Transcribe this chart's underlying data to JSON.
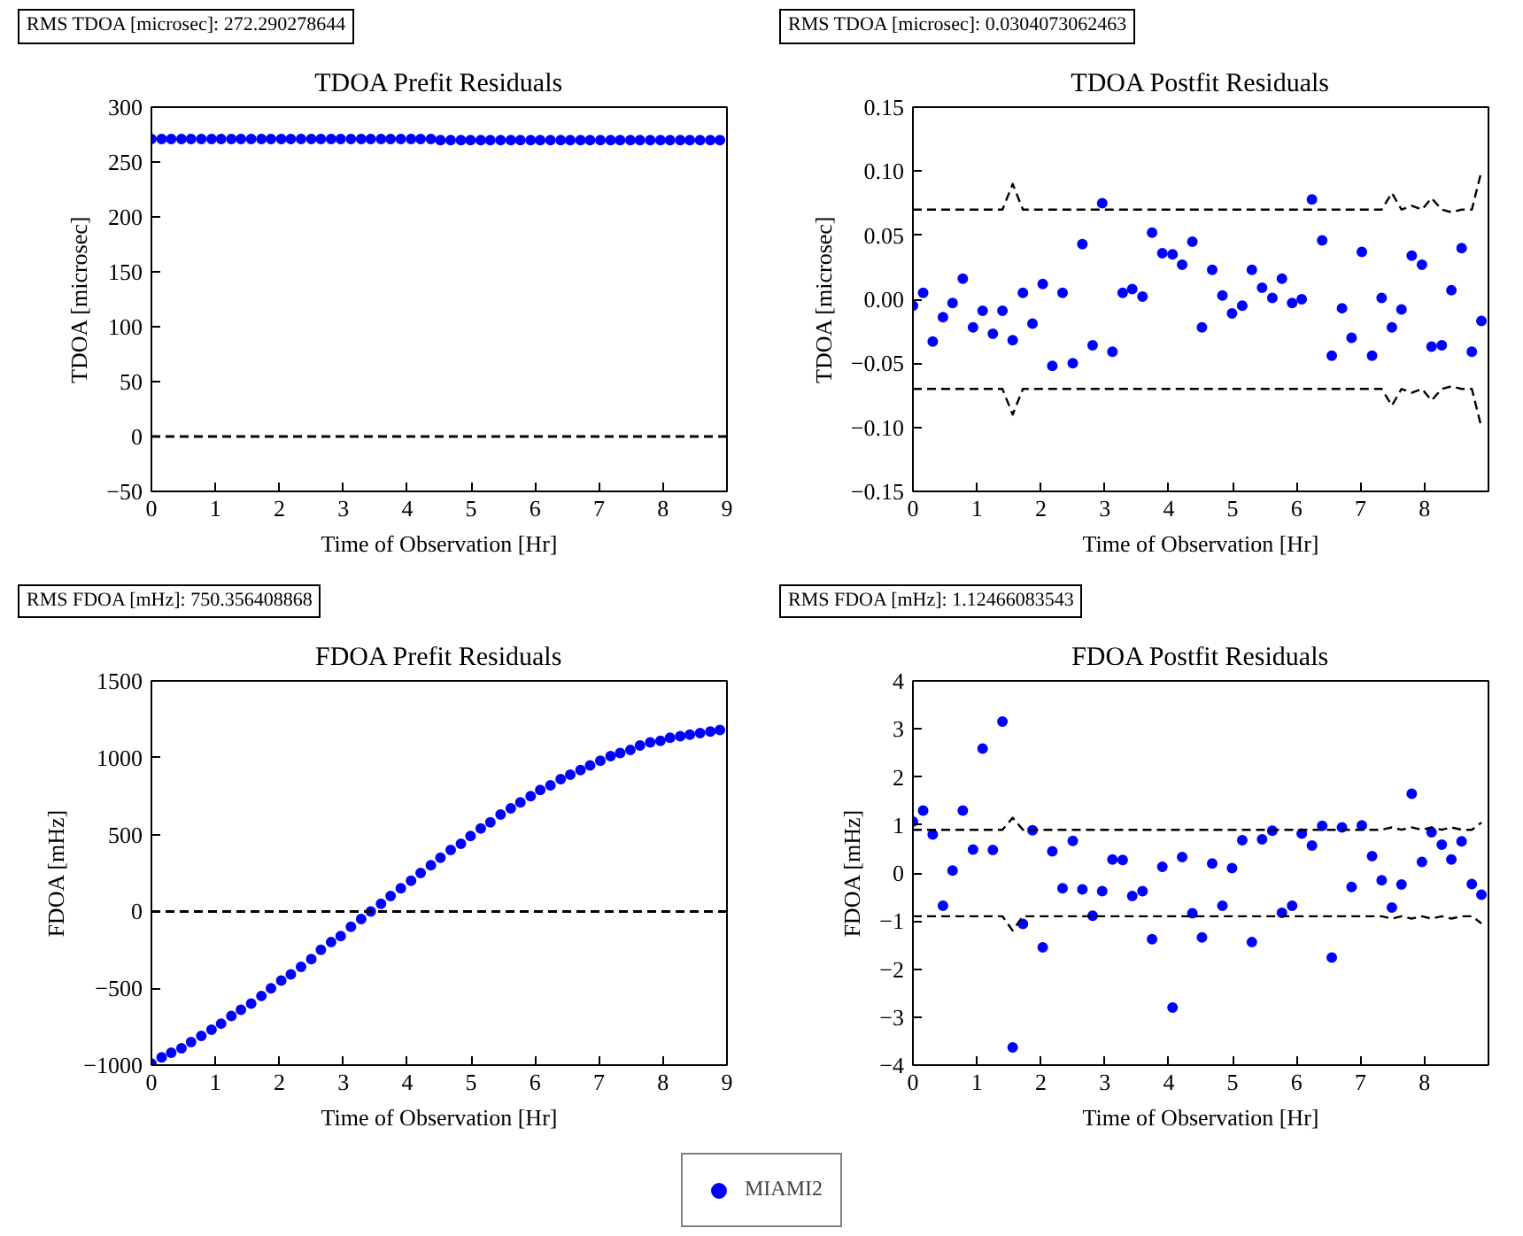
{
  "chart_data": [
    {
      "type": "scatter",
      "title": "TDOA Prefit Residuals",
      "xlabel": "Time of Observation [Hr]",
      "ylabel": "TDOA [microsec]",
      "annotations": [
        "RMS TDOA [microsec]: 272.290278644"
      ],
      "marker": "circle",
      "grid": false,
      "x": [
        0,
        0.16,
        0.31,
        0.47,
        0.62,
        0.78,
        0.94,
        1.09,
        1.25,
        1.4,
        1.56,
        1.72,
        1.87,
        2.03,
        2.18,
        2.34,
        2.5,
        2.65,
        2.81,
        2.96,
        3.12,
        3.28,
        3.43,
        3.59,
        3.74,
        3.9,
        4.06,
        4.21,
        4.37,
        4.52,
        4.68,
        4.84,
        4.99,
        5.15,
        5.3,
        5.46,
        5.62,
        5.77,
        5.93,
        6.08,
        6.24,
        6.4,
        6.55,
        6.71,
        6.86,
        7.02,
        7.18,
        7.33,
        7.49,
        7.64,
        7.8,
        7.96,
        8.11,
        8.27,
        8.42,
        8.58,
        8.74,
        8.89
      ],
      "series": [
        {
          "color": "#0000ff",
          "values": [
            271,
            271,
            271,
            271,
            271,
            271,
            271,
            271,
            271,
            271,
            271,
            271,
            271,
            271,
            271,
            271,
            271,
            271,
            271,
            271,
            271,
            271,
            271,
            271,
            271,
            271,
            271,
            271,
            271,
            270,
            270,
            270,
            270,
            270,
            270,
            270,
            270,
            270,
            270,
            270,
            270,
            270,
            270,
            270,
            270,
            270,
            270,
            270,
            270,
            270,
            270,
            270,
            270,
            270,
            270,
            270,
            270,
            270
          ]
        }
      ],
      "ref_lines": [
        {
          "axis": "y",
          "value": 0,
          "color": "#000000",
          "line_style": "dashed"
        }
      ],
      "xlim": [
        0,
        9
      ],
      "xticks": [
        0,
        1,
        2,
        3,
        4,
        5,
        6,
        7,
        8,
        9
      ],
      "ylim": [
        -50,
        300
      ],
      "yticks": [
        {
          "value": -50,
          "label": "−50"
        },
        0,
        50,
        100,
        150,
        200,
        250,
        300
      ]
    },
    {
      "type": "scatter",
      "title": "TDOA Postfit Residuals",
      "xlabel": "Time of Observation [Hr]",
      "ylabel": "TDOA [microsec]",
      "annotations": [
        "RMS TDOA [microsec]: 0.0304073062463"
      ],
      "marker": "circle",
      "grid": false,
      "x": [
        0,
        0.16,
        0.31,
        0.47,
        0.62,
        0.78,
        0.94,
        1.09,
        1.25,
        1.4,
        1.56,
        1.72,
        1.87,
        2.03,
        2.18,
        2.34,
        2.5,
        2.65,
        2.81,
        2.96,
        3.12,
        3.28,
        3.43,
        3.59,
        3.74,
        3.9,
        4.06,
        4.21,
        4.37,
        4.52,
        4.68,
        4.84,
        4.99,
        5.15,
        5.3,
        5.46,
        5.62,
        5.77,
        5.93,
        6.08,
        6.24,
        6.4,
        6.55,
        6.71,
        6.86,
        7.02,
        7.18,
        7.33,
        7.49,
        7.64,
        7.8,
        7.96,
        8.11,
        8.27,
        8.42,
        8.58,
        8.74,
        8.89
      ],
      "series": [
        {
          "color": "#0000ff",
          "values": [
            -0.005,
            0.005,
            -0.033,
            -0.014,
            -0.003,
            0.016,
            -0.022,
            -0.009,
            -0.027,
            -0.009,
            -0.032,
            0.005,
            -0.019,
            0.012,
            -0.052,
            0.005,
            -0.05,
            0.043,
            -0.036,
            0.075,
            -0.041,
            0.005,
            0.008,
            0.002,
            0.052,
            0.036,
            0.035,
            0.027,
            0.045,
            -0.022,
            0.023,
            0.003,
            -0.011,
            -0.005,
            0.023,
            0.009,
            0.001,
            0.016,
            -0.003,
            0,
            0.078,
            0.046,
            -0.044,
            -0.007,
            -0.03,
            0.037,
            -0.044,
            0.001,
            -0.022,
            -0.008,
            0.034,
            0.027,
            -0.037,
            -0.036,
            0.007,
            0.04,
            -0.041,
            -0.017
          ]
        },
        {
          "type": "line",
          "color": "#000000",
          "line_style": "dashed",
          "marker": "none",
          "values": [
            0.07,
            0.07,
            0.07,
            0.07,
            0.07,
            0.07,
            0.07,
            0.07,
            0.07,
            0.07,
            0.09,
            0.07,
            0.07,
            0.07,
            0.07,
            0.07,
            0.07,
            0.07,
            0.07,
            0.07,
            0.07,
            0.07,
            0.07,
            0.07,
            0.07,
            0.07,
            0.07,
            0.07,
            0.07,
            0.07,
            0.07,
            0.07,
            0.07,
            0.07,
            0.07,
            0.07,
            0.07,
            0.07,
            0.07,
            0.07,
            0.07,
            0.07,
            0.07,
            0.07,
            0.07,
            0.07,
            0.07,
            0.07,
            0.083,
            0.07,
            0.073,
            0.07,
            0.079,
            0.07,
            0.068,
            0.07,
            0.07,
            0.1
          ]
        },
        {
          "type": "line",
          "color": "#000000",
          "line_style": "dashed",
          "marker": "none",
          "values": [
            -0.07,
            -0.07,
            -0.07,
            -0.07,
            -0.07,
            -0.07,
            -0.07,
            -0.07,
            -0.07,
            -0.07,
            -0.09,
            -0.07,
            -0.07,
            -0.07,
            -0.07,
            -0.07,
            -0.07,
            -0.07,
            -0.07,
            -0.07,
            -0.07,
            -0.07,
            -0.07,
            -0.07,
            -0.07,
            -0.07,
            -0.07,
            -0.07,
            -0.07,
            -0.07,
            -0.07,
            -0.07,
            -0.07,
            -0.07,
            -0.07,
            -0.07,
            -0.07,
            -0.07,
            -0.07,
            -0.07,
            -0.07,
            -0.07,
            -0.07,
            -0.07,
            -0.07,
            -0.07,
            -0.07,
            -0.07,
            -0.083,
            -0.07,
            -0.073,
            -0.07,
            -0.079,
            -0.07,
            -0.068,
            -0.07,
            -0.07,
            -0.1
          ]
        }
      ],
      "xlim": [
        0,
        9
      ],
      "xticks": [
        0,
        1,
        2,
        3,
        4,
        5,
        6,
        7,
        8
      ],
      "ylim": [
        -0.15,
        0.15
      ],
      "yticks": [
        {
          "value": -0.15,
          "label": "−0.15"
        },
        {
          "value": -0.1,
          "label": "−0.10"
        },
        {
          "value": -0.05,
          "label": "−0.05"
        },
        {
          "value": 0,
          "label": "0.00"
        },
        {
          "value": 0.05,
          "label": "0.05"
        },
        {
          "value": 0.1,
          "label": "0.10"
        },
        {
          "value": 0.15,
          "label": "0.15"
        }
      ]
    },
    {
      "type": "scatter",
      "title": "FDOA Prefit Residuals",
      "xlabel": "Time of Observation [Hr]",
      "ylabel": "FDOA [mHz]",
      "annotations": [
        "RMS FDOA [mHz]: 750.356408868"
      ],
      "marker": "circle",
      "grid": false,
      "x": [
        0,
        0.16,
        0.31,
        0.47,
        0.62,
        0.78,
        0.94,
        1.09,
        1.25,
        1.4,
        1.56,
        1.72,
        1.87,
        2.03,
        2.18,
        2.34,
        2.5,
        2.65,
        2.81,
        2.96,
        3.12,
        3.28,
        3.43,
        3.59,
        3.74,
        3.9,
        4.06,
        4.21,
        4.37,
        4.52,
        4.68,
        4.84,
        4.99,
        5.15,
        5.3,
        5.46,
        5.62,
        5.77,
        5.93,
        6.08,
        6.24,
        6.4,
        6.55,
        6.71,
        6.86,
        7.02,
        7.18,
        7.33,
        7.49,
        7.64,
        7.8,
        7.96,
        8.11,
        8.27,
        8.42,
        8.58,
        8.74,
        8.89
      ],
      "series": [
        {
          "color": "#0000ff",
          "values": [
            -990,
            -950,
            -920,
            -890,
            -850,
            -810,
            -770,
            -730,
            -680,
            -640,
            -600,
            -550,
            -500,
            -450,
            -410,
            -360,
            -310,
            -250,
            -200,
            -160,
            -100,
            -50,
            0,
            50,
            100,
            150,
            200,
            250,
            300,
            350,
            400,
            440,
            490,
            540,
            580,
            630,
            670,
            710,
            750,
            790,
            820,
            860,
            890,
            920,
            950,
            980,
            1010,
            1030,
            1050,
            1080,
            1100,
            1110,
            1130,
            1140,
            1150,
            1160,
            1170,
            1180
          ]
        }
      ],
      "ref_lines": [
        {
          "axis": "y",
          "value": 0,
          "color": "#000000",
          "line_style": "dashed"
        }
      ],
      "xlim": [
        0,
        9
      ],
      "xticks": [
        0,
        1,
        2,
        3,
        4,
        5,
        6,
        7,
        8,
        9
      ],
      "ylim": [
        -1000,
        1500
      ],
      "yticks": [
        {
          "value": -1000,
          "label": "−1000"
        },
        {
          "value": -500,
          "label": "−500"
        },
        0,
        500,
        1000,
        1500
      ]
    },
    {
      "type": "scatter",
      "title": "FDOA Postfit Residuals",
      "xlabel": "Time of Observation [Hr]",
      "ylabel": "FDOA [mHz]",
      "annotations": [
        "RMS FDOA [mHz]: 1.12466083543"
      ],
      "marker": "circle",
      "grid": false,
      "legend": "bottom",
      "x": [
        0,
        0.16,
        0.31,
        0.47,
        0.62,
        0.78,
        0.94,
        1.09,
        1.25,
        1.4,
        1.56,
        1.72,
        1.87,
        2.03,
        2.18,
        2.34,
        2.5,
        2.65,
        2.81,
        2.96,
        3.12,
        3.28,
        3.43,
        3.59,
        3.74,
        3.9,
        4.06,
        4.21,
        4.37,
        4.52,
        4.68,
        4.84,
        4.99,
        5.15,
        5.3,
        5.46,
        5.62,
        5.77,
        5.93,
        6.08,
        6.24,
        6.4,
        6.55,
        6.71,
        6.86,
        7.02,
        7.18,
        7.33,
        7.49,
        7.64,
        7.8,
        7.96,
        8.11,
        8.27,
        8.42,
        8.58,
        8.74,
        8.89
      ],
      "series": [
        {
          "name": "MIAMI2",
          "color": "#0000ff",
          "values": [
            1.07,
            1.3,
            0.8,
            -0.68,
            0.05,
            1.3,
            0.49,
            2.59,
            0.48,
            3.15,
            -3.63,
            -1.06,
            0.89,
            -1.55,
            0.45,
            -0.32,
            0.67,
            -0.34,
            -0.89,
            -0.38,
            0.28,
            0.27,
            -0.48,
            -0.38,
            -1.38,
            0.13,
            -2.8,
            0.33,
            -0.84,
            -1.34,
            0.2,
            -0.68,
            0.1,
            0.68,
            -1.44,
            0.7,
            0.88,
            -0.83,
            -0.68,
            0.82,
            0.57,
            0.98,
            -1.76,
            0.95,
            -0.29,
            0.99,
            0.35,
            -0.15,
            -0.72,
            -0.24,
            1.65,
            0.23,
            0.85,
            0.59,
            0.28,
            0.66,
            -0.23,
            -0.45
          ]
        },
        {
          "type": "line",
          "color": "#000000",
          "line_style": "dashed",
          "marker": "none",
          "values": [
            0.9,
            0.9,
            0.9,
            0.9,
            0.9,
            0.9,
            0.9,
            0.9,
            0.9,
            0.9,
            1.15,
            0.9,
            0.9,
            0.9,
            0.9,
            0.9,
            0.9,
            0.9,
            0.9,
            0.9,
            0.9,
            0.9,
            0.9,
            0.9,
            0.9,
            0.9,
            0.9,
            0.9,
            0.9,
            0.9,
            0.9,
            0.9,
            0.9,
            0.9,
            0.9,
            0.9,
            0.9,
            0.9,
            0.9,
            0.9,
            0.9,
            0.9,
            0.9,
            0.9,
            0.9,
            0.9,
            0.9,
            0.9,
            0.95,
            0.9,
            0.95,
            0.9,
            0.95,
            0.9,
            0.95,
            0.9,
            0.9,
            1.05
          ]
        },
        {
          "type": "line",
          "color": "#000000",
          "line_style": "dashed",
          "marker": "none",
          "values": [
            -0.9,
            -0.9,
            -0.9,
            -0.9,
            -0.9,
            -0.9,
            -0.9,
            -0.9,
            -0.9,
            -0.9,
            -1.2,
            -0.9,
            -0.9,
            -0.9,
            -0.9,
            -0.9,
            -0.9,
            -0.9,
            -0.9,
            -0.9,
            -0.9,
            -0.9,
            -0.9,
            -0.9,
            -0.9,
            -0.9,
            -0.9,
            -0.9,
            -0.9,
            -0.9,
            -0.9,
            -0.9,
            -0.9,
            -0.9,
            -0.9,
            -0.9,
            -0.9,
            -0.9,
            -0.9,
            -0.9,
            -0.9,
            -0.9,
            -0.9,
            -0.9,
            -0.9,
            -0.9,
            -0.9,
            -0.9,
            -0.95,
            -0.9,
            -0.95,
            -0.9,
            -0.95,
            -0.9,
            -0.95,
            -0.9,
            -0.9,
            -1.05
          ]
        }
      ],
      "xlim": [
        0,
        9
      ],
      "xticks": [
        0,
        1,
        2,
        3,
        4,
        5,
        6,
        7,
        8
      ],
      "ylim": [
        -4,
        4
      ],
      "yticks": [
        {
          "value": -4,
          "label": "−4"
        },
        {
          "value": -3,
          "label": "−3"
        },
        {
          "value": -2,
          "label": "−2"
        },
        {
          "value": -1,
          "label": "−1"
        },
        0,
        1,
        2,
        3,
        4
      ]
    }
  ]
}
